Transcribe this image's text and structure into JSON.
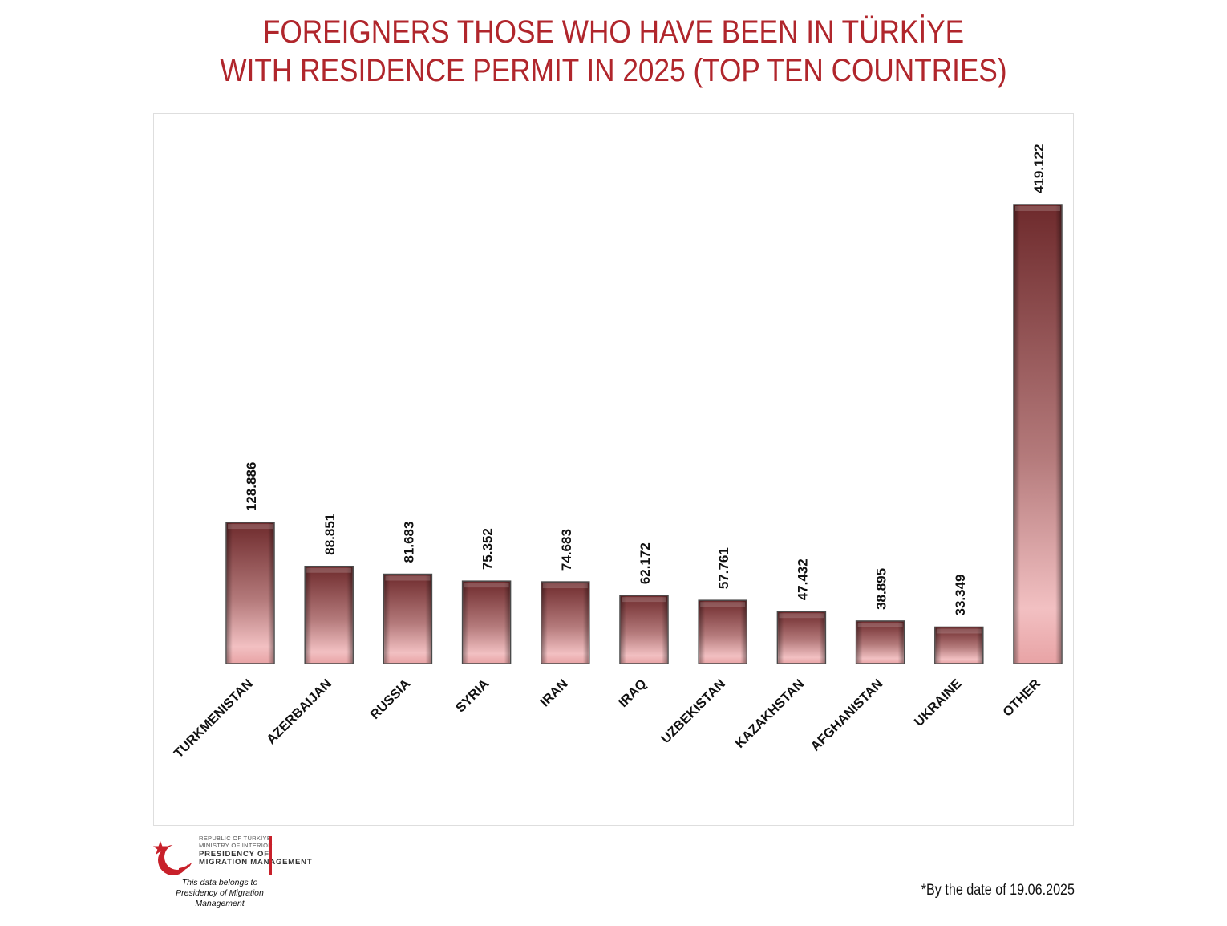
{
  "title": {
    "line1": "FOREIGNERS THOSE WHO HAVE BEEN IN TÜRKİYE",
    "line2": "WITH RESIDENCE PERMIT IN 2025 (TOP TEN COUNTRIES)"
  },
  "chart_data": {
    "type": "bar",
    "title": "FOREIGNERS THOSE WHO HAVE BEEN IN TÜRKİYE WITH RESIDENCE PERMIT IN 2025 (TOP TEN COUNTRIES)",
    "categories": [
      "TURKMENISTAN",
      "AZERBAIJAN",
      "RUSSIA",
      "SYRIA",
      "IRAN",
      "IRAQ",
      "UZBEKISTAN",
      "KAZAKHSTAN",
      "AFGHANISTAN",
      "UKRAINE",
      "OTHER"
    ],
    "values": [
      128886,
      88851,
      81683,
      75352,
      74683,
      62172,
      57761,
      47432,
      38895,
      33349,
      419122
    ],
    "value_labels": [
      "128.886",
      "88.851",
      "81.683",
      "75.352",
      "74.683",
      "62.172",
      "57.761",
      "47.432",
      "38.895",
      "33.349",
      "419.122"
    ],
    "xlabel": "",
    "ylabel": "",
    "ylim": [
      0,
      419122
    ],
    "grid": false,
    "legend": "none",
    "colors": {
      "bar_top": "#6e2a2c",
      "bar_bottom": "#f2c0c2",
      "label": "#111111",
      "title": "#b0262c"
    }
  },
  "logo": {
    "line1": "REPUBLIC OF TÜRKİYE",
    "line2": "MINISTRY OF INTERIOR",
    "line3": "PRESIDENCY OF",
    "line4": "MIGRATION MANAGEMENT",
    "caption1": "This data belongs to",
    "caption2": "Presidency of Migration Management"
  },
  "footnote": "*By the date of 19.06.2025"
}
